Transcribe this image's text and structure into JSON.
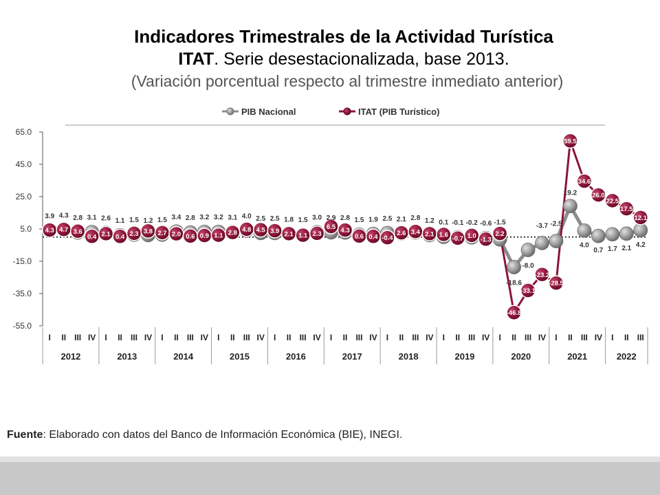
{
  "header": {
    "title_line1": "Indicadores Trimestrales de la Actividad Turística",
    "title_line2_bold": "ITAT",
    "title_line2_rest": ". Serie desestacionalizada, base 2013.",
    "subtitle": "(Variación porcentual respecto al trimestre inmediato anterior)"
  },
  "source": {
    "label": "Fuente",
    "text": ": Elaborado con datos del Banco de Información Económica (BIE), INEGI."
  },
  "chart_data": {
    "type": "line",
    "ylim": [
      -55,
      65
    ],
    "yticks": [
      "65.0",
      "45.0",
      "25.0",
      "5.0",
      "-15.0",
      "-35.0",
      "-55.0"
    ],
    "ytick_values": [
      65,
      45,
      25,
      5,
      -15,
      -35,
      -55
    ],
    "quarters": [
      "I",
      "II",
      "III",
      "IV",
      "I",
      "II",
      "III",
      "IV",
      "I",
      "II",
      "III",
      "IV",
      "I",
      "II",
      "III",
      "IV",
      "I",
      "II",
      "III",
      "IV",
      "I",
      "II",
      "III",
      "IV",
      "I",
      "II",
      "III",
      "IV",
      "I",
      "II",
      "III",
      "IV",
      "I",
      "II",
      "III",
      "IV",
      "I",
      "II",
      "III",
      "IV",
      "I",
      "II",
      "III"
    ],
    "years": [
      "2012",
      "2013",
      "2014",
      "2015",
      "2016",
      "2017",
      "2018",
      "2019",
      "2020",
      "2021",
      "2022"
    ],
    "legend_position": "top",
    "series": [
      {
        "name": "PIB Nacional",
        "color": "#8c8c8c",
        "values": [
          3.9,
          4.3,
          2.8,
          3.1,
          2.6,
          1.1,
          1.5,
          1.2,
          1.5,
          3.4,
          2.8,
          3.2,
          3.2,
          3.1,
          4.0,
          2.5,
          2.5,
          1.8,
          1.5,
          3.0,
          2.9,
          2.8,
          1.5,
          1.9,
          2.5,
          2.1,
          2.8,
          1.2,
          0.1,
          -0.1,
          -0.2,
          -0.6,
          -1.5,
          -18.6,
          -8.0,
          -3.7,
          -2.5,
          19.2,
          4.0,
          0.7,
          1.7,
          2.1,
          4.2
        ],
        "labels": [
          "3.9",
          "4.3",
          "2.8",
          "3.1",
          "2.6",
          "1.1",
          "1.5",
          "1.2",
          "1.5",
          "3.4",
          "2.8",
          "3.2",
          "3.2",
          "3.1",
          "4.0",
          "2.5",
          "2.5",
          "1.8",
          "1.5",
          "3.0",
          "2.9",
          "2.8",
          "1.5",
          "1.9",
          "2.5",
          "2.1",
          "2.8",
          "1.2",
          "0.1",
          "-0.1",
          "-0.2",
          "-0.6",
          "-1.5",
          "-18.6",
          "-8.0",
          "-3.7",
          "-2.5",
          "19.2",
          "4.0",
          "0.7",
          "1.7",
          "2.1",
          "4.2"
        ]
      },
      {
        "name": "ITAT (PIB Turístico)",
        "color": "#8b1538",
        "values": [
          4.3,
          4.7,
          3.6,
          0.4,
          2.1,
          0.4,
          2.3,
          3.8,
          2.7,
          2.0,
          0.6,
          0.9,
          1.1,
          2.8,
          4.8,
          4.5,
          3.9,
          2.1,
          1.1,
          2.3,
          6.5,
          4.3,
          0.6,
          0.4,
          -0.4,
          2.6,
          3.4,
          2.1,
          1.6,
          -0.7,
          1.0,
          -1.3,
          2.2,
          -46.8,
          -33.1,
          -23.2,
          -28.5,
          59.5,
          34.6,
          26.0,
          22.5,
          17.5,
          12.1
        ],
        "labels": [
          "4.3",
          "4.7",
          "3.6",
          "0.4",
          "2.1",
          "0.4",
          "2.3",
          "3.8",
          "2.7",
          "2.0",
          "0.6",
          "0.9",
          "1.1",
          "2.8",
          "4.8",
          "4.5",
          "3.9",
          "2.1",
          "1.1",
          "2.3",
          "6.5",
          "4.3",
          "0.6",
          "0.4",
          "-0.4",
          "2.6",
          "3.4",
          "2.1",
          "1.6",
          "-0.7",
          "1.0",
          "-1.3",
          "2.2",
          "-46.8",
          "-33.1",
          "-23.2",
          "-28.5",
          "59.5",
          "34.6",
          "26.0",
          "22.5",
          "17.5",
          "12.1"
        ]
      }
    ]
  }
}
